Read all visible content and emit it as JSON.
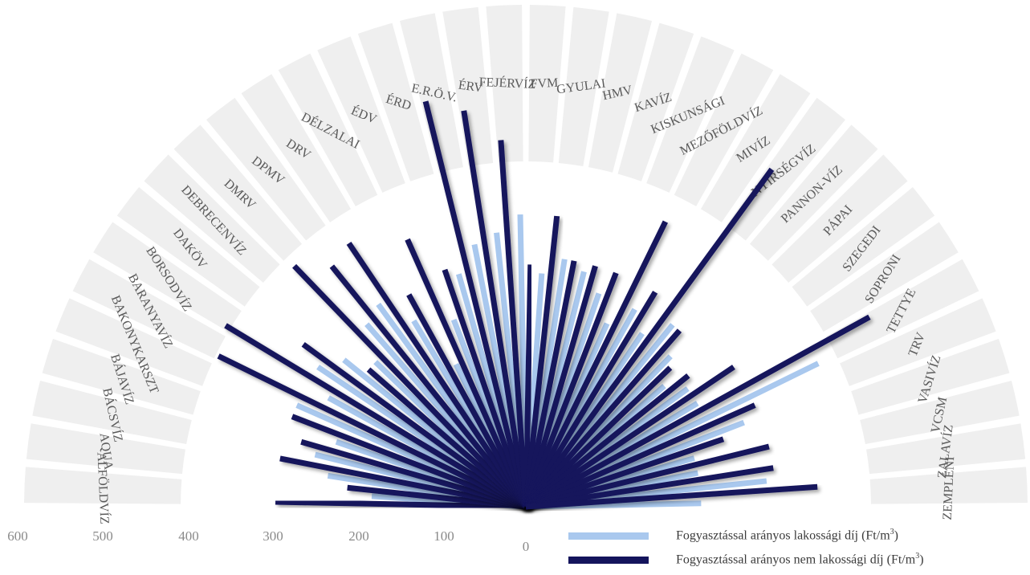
{
  "chart_data": {
    "type": "radial-bar",
    "title": "",
    "categories": [
      "ALFÖLDVÍZ",
      "AQUA",
      "BÁCSVÍZ",
      "BÁJAVÍZ",
      "BAKONYKARSZT",
      "BARANYAVÍZ",
      "BORSODVÍZ",
      "DAKÖV",
      "DEBRECENVÍZ",
      "DMRV",
      "DPMV",
      "DRV",
      "DÉLZALAI",
      "ÉDV",
      "ÉRD",
      "E.R.Ö.V.",
      "ÉRV",
      "FEJÉRVÍZ",
      "FVM",
      "GYULAI",
      "HMV",
      "KAVÍZ",
      "KISKUNSÁGI",
      "MEZŐFÖLDVÍZ",
      "MIVÍZ",
      "NYÍRSÉGVÍZ",
      "PANNON-VÍZ",
      "PÁPAI",
      "SZEGEDI",
      "SOPRONI",
      "TETTYE",
      "TRV",
      "VASIVÍZ",
      "VCSM",
      "ZALAVÍZ",
      "ZEMPLÉNI"
    ],
    "series": [
      {
        "name": "Fogyasztással arányos lakossági díj (Ft/m3)",
        "color": "#a9c8ee",
        "values": [
          185,
          240,
          260,
          240,
          300,
          270,
          300,
          280,
          250,
          290,
          300,
          260,
          190,
          240,
          290,
          320,
          330,
          350,
          280,
          300,
          290,
          270,
          240,
          270,
          250,
          280,
          250,
          220,
          240,
          240,
          390,
          280,
          210,
          210,
          290,
          210
        ]
      },
      {
        "name": "Fogyasztással arányos nem lakossági díj (Ft/m3)",
        "color": "#14145c",
        "values": [
          300,
          215,
          300,
          280,
          300,
          410,
          420,
          330,
          250,
          400,
          370,
          380,
          290,
          350,
          300,
          500,
          480,
          440,
          290,
          350,
          300,
          300,
          300,
          380,
          300,
          500,
          280,
          240,
          250,
          300,
          470,
          300,
          250,
          300,
          300,
          350
        ]
      }
    ],
    "axis": {
      "ticks": [
        "600",
        "500",
        "400",
        "300",
        "200",
        "100",
        "0"
      ],
      "range": [
        0,
        600
      ]
    },
    "legend_position": "bottom-right"
  }
}
